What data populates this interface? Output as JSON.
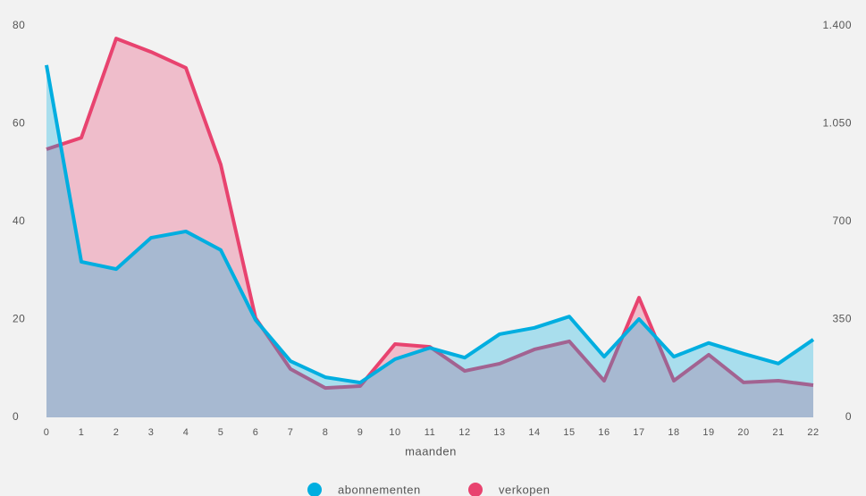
{
  "chart_data": {
    "type": "area",
    "x_label": "maanden",
    "x": [
      0,
      1,
      2,
      3,
      4,
      5,
      6,
      7,
      8,
      9,
      10,
      11,
      12,
      13,
      14,
      15,
      16,
      17,
      18,
      19,
      20,
      21,
      22
    ],
    "xlim": [
      0,
      22
    ],
    "ylim": [
      0,
      80
    ],
    "yticks": [
      0,
      20,
      40,
      60,
      80
    ],
    "y2lim": [
      0,
      1400
    ],
    "y2ticks": [
      0,
      350,
      700,
      {
        "value": 1050,
        "label": "1.050"
      },
      {
        "value": 1400,
        "label": "1.400"
      }
    ],
    "series": [
      {
        "name": "abonnementen",
        "color": "#00aee0",
        "values": [
          72,
          31.8,
          30.3,
          36.7,
          38,
          34.2,
          19.9,
          11.5,
          8.2,
          7.1,
          11.9,
          14.2,
          12.2,
          17,
          18.3,
          20.6,
          12.4,
          20.1,
          12.4,
          15.2,
          13,
          11,
          15.9
        ]
      },
      {
        "name": "verkopen",
        "color": "#e8436f",
        "axis": "y2",
        "values": [
          959,
          1000,
          1355,
          1307,
          1250,
          904,
          355,
          173,
          105,
          112,
          262,
          252,
          166,
          192,
          243,
          272,
          131,
          428,
          131,
          224,
          125,
          131,
          115
        ]
      }
    ],
    "legend": "bottom"
  }
}
